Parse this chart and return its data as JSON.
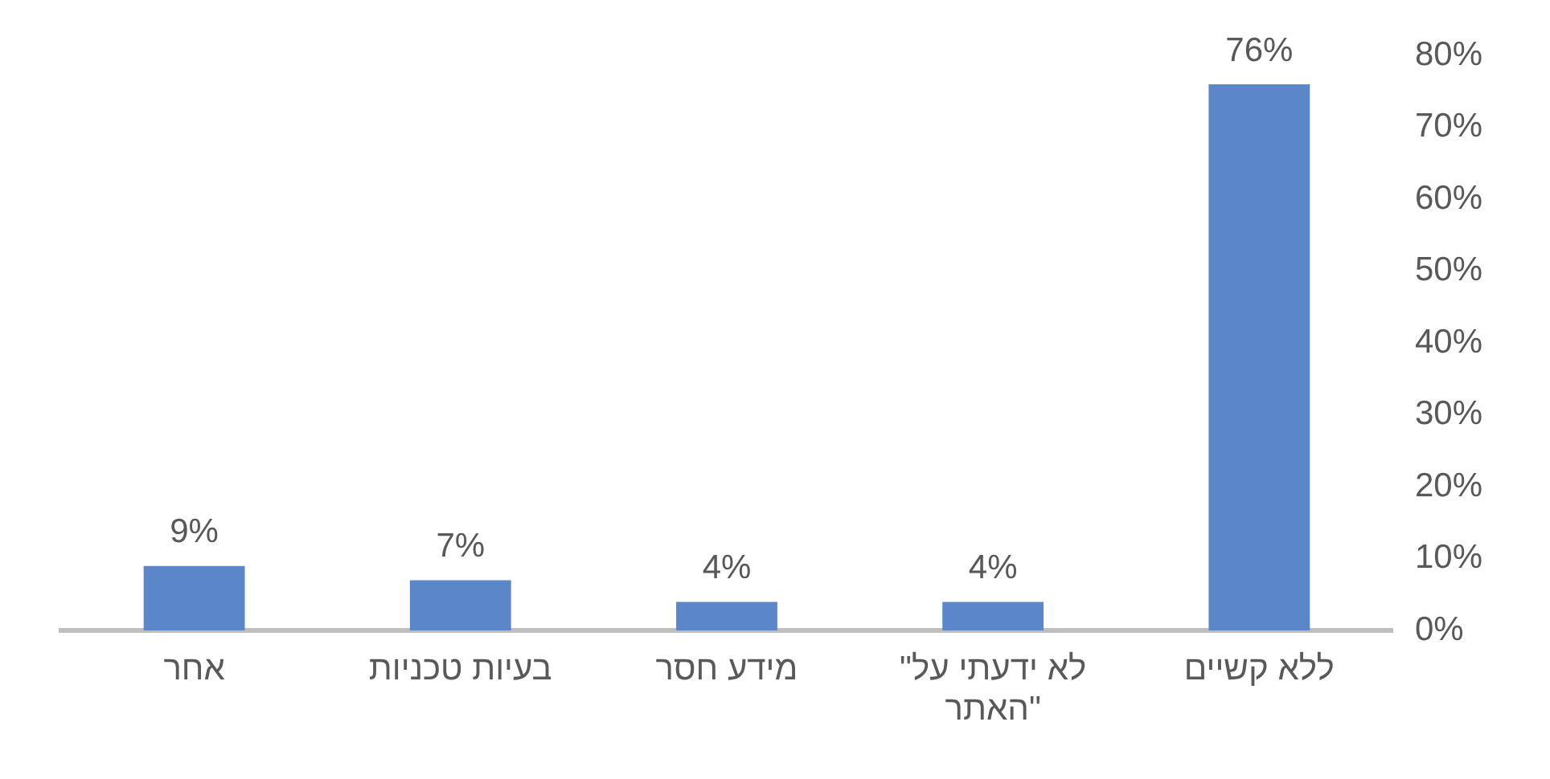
{
  "chart_data": {
    "type": "bar",
    "categories": [
      "אחר",
      "בעיות טכניות",
      "מידע חסר",
      "\"לא ידעתי על האתר\"",
      "ללא קשיים"
    ],
    "values": [
      9,
      7,
      4,
      4,
      76
    ],
    "color": "#5b87c9",
    "value_labels": [
      "9%",
      "7%",
      "4%",
      "4%",
      "76%"
    ],
    "ylim": [
      0,
      80
    ],
    "yticks": [
      {
        "value": 0,
        "label": "0%"
      },
      {
        "value": 10,
        "label": "10%"
      },
      {
        "value": 20,
        "label": "20%"
      },
      {
        "value": 30,
        "label": "30%"
      },
      {
        "value": 40,
        "label": "40%"
      },
      {
        "value": 50,
        "label": "50%"
      },
      {
        "value": 60,
        "label": "60%"
      },
      {
        "value": 70,
        "label": "70%"
      },
      {
        "value": 80,
        "label": "80%"
      }
    ],
    "grid": false,
    "legend": false
  }
}
